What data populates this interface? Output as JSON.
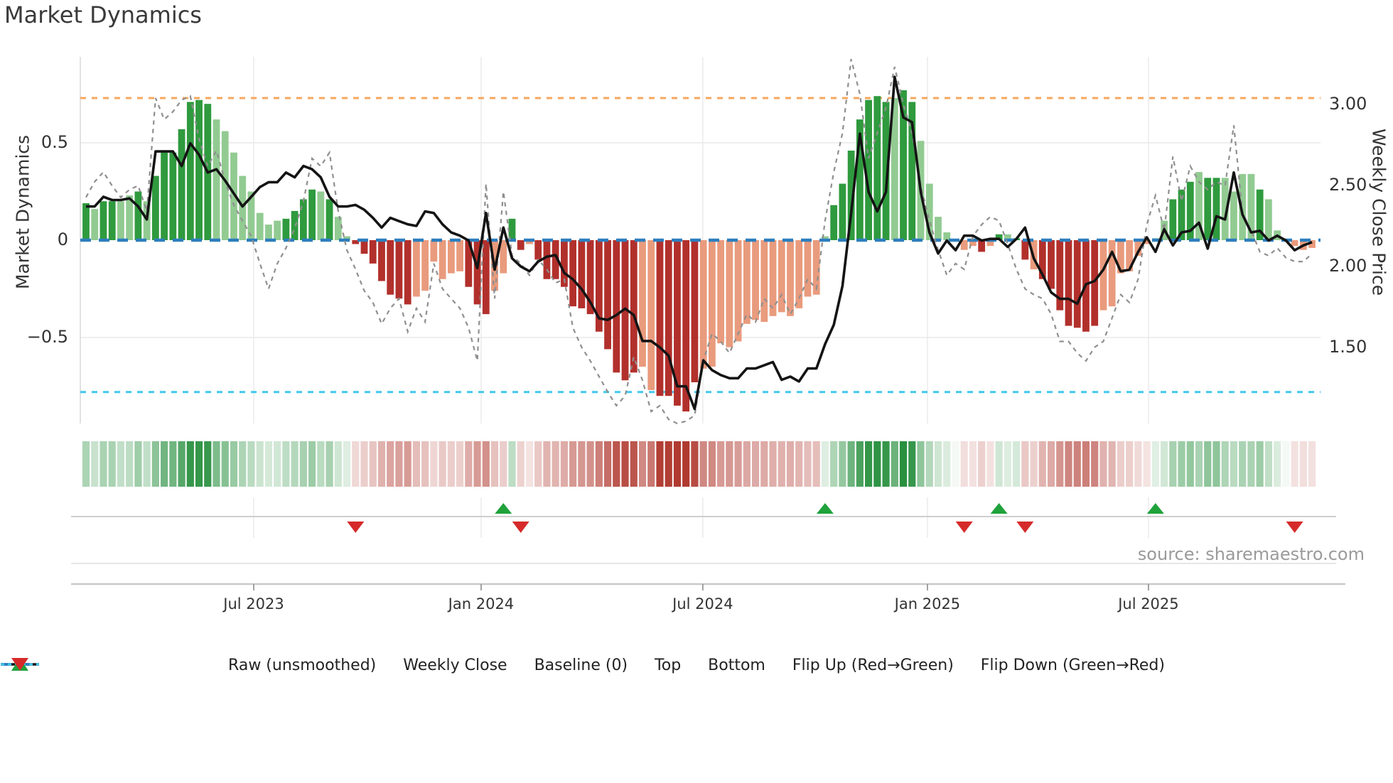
{
  "title": "Market Dynamics",
  "source": "source: sharemaestro.com",
  "legend": {
    "items": [
      {
        "label": "Raw (unsmoothed)",
        "swatch": "dash-gray"
      },
      {
        "label": "Weekly Close",
        "swatch": "solid-black"
      },
      {
        "label": "Baseline (0)",
        "swatch": "dash-blue"
      },
      {
        "label": "Top",
        "swatch": "dot-orange"
      },
      {
        "label": "Bottom",
        "swatch": "dot-cyan"
      },
      {
        "label": "Flip Up (Red→Green)",
        "swatch": "tri-up"
      },
      {
        "label": "Flip Down (Green→Red)",
        "swatch": "tri-down"
      }
    ]
  },
  "colors": {
    "bar_green_dark": "#2f9a3e",
    "bar_green_light": "#92cb92",
    "bar_red_dark": "#b2302c",
    "bar_red_light": "#e99b7d",
    "raw_line": "#8f8f8f",
    "close_line": "#141414",
    "baseline": "#2d7ebd",
    "top_line": "#f6a75f",
    "bottom_line": "#41c8ee",
    "flip_up": "#1fa23b",
    "flip_down": "#d62a2a",
    "grid": "#e9e9e9",
    "spine": "#cfcfcf",
    "text": "#333333"
  },
  "chart_data": {
    "type": "bar+line",
    "title": "Market Dynamics",
    "xlabel": "",
    "ylabel_left": "Market Dynamics",
    "ylabel_right": "Weekly Close Price",
    "x_freq": "weekly",
    "n_points": 142,
    "x_ticks": [
      {
        "pos": 19.29,
        "label": "Jul 2023"
      },
      {
        "pos": 45.44,
        "label": "Jan 2024"
      },
      {
        "pos": 70.94,
        "label": "Jul 2024"
      },
      {
        "pos": 96.77,
        "label": "Jan 2025"
      },
      {
        "pos": 122.19,
        "label": "Jul 2025"
      }
    ],
    "left_axis": {
      "ticks": [
        0.5,
        0,
        -0.5
      ],
      "tick_labels": [
        "0.5",
        "0",
        "−0.5"
      ],
      "ylim": [
        -0.94,
        0.94
      ]
    },
    "right_axis": {
      "ticks": [
        3.0,
        2.5,
        2.0,
        1.5
      ],
      "tick_labels": [
        "3.00",
        "2.50",
        "2.00",
        "1.50"
      ],
      "ylim": [
        1.03,
        3.29
      ]
    },
    "baseline": 0,
    "top_threshold": 0.73,
    "bottom_threshold": -0.78,
    "grid": "on",
    "legend_position": "bottom",
    "oscillator_smoothed": [
      0.19,
      0.16,
      0.2,
      0.2,
      0.2,
      0.23,
      0.25,
      0.2,
      0.33,
      0.45,
      0.45,
      0.57,
      0.71,
      0.72,
      0.7,
      0.62,
      0.56,
      0.45,
      0.33,
      0.25,
      0.14,
      0.08,
      0.1,
      0.11,
      0.15,
      0.21,
      0.26,
      0.25,
      0.21,
      0.12,
      0.02,
      -0.02,
      -0.07,
      -0.12,
      -0.21,
      -0.28,
      -0.3,
      -0.33,
      -0.29,
      -0.26,
      -0.11,
      -0.2,
      -0.17,
      -0.16,
      -0.24,
      -0.33,
      -0.38,
      -0.26,
      -0.17,
      0.11,
      -0.05,
      -0.02,
      -0.1,
      -0.2,
      -0.2,
      -0.24,
      -0.34,
      -0.35,
      -0.38,
      -0.47,
      -0.56,
      -0.68,
      -0.72,
      -0.68,
      -0.65,
      -0.77,
      -0.8,
      -0.8,
      -0.85,
      -0.88,
      -0.73,
      -0.66,
      -0.65,
      -0.53,
      -0.55,
      -0.52,
      -0.43,
      -0.41,
      -0.42,
      -0.39,
      -0.37,
      -0.39,
      -0.35,
      -0.29,
      -0.28,
      0.02,
      0.18,
      0.29,
      0.46,
      0.62,
      0.72,
      0.74,
      0.71,
      0.73,
      0.77,
      0.71,
      0.51,
      0.29,
      0.12,
      0.04,
      0.0,
      -0.05,
      -0.03,
      -0.06,
      -0.03,
      0.03,
      0.03,
      0.01,
      -0.1,
      -0.15,
      -0.2,
      -0.25,
      -0.36,
      -0.44,
      -0.45,
      -0.47,
      -0.44,
      -0.36,
      -0.34,
      -0.17,
      -0.16,
      -0.08,
      -0.02,
      0.01,
      0.1,
      0.21,
      0.26,
      0.3,
      0.35,
      0.32,
      0.32,
      0.32,
      0.25,
      0.34,
      0.34,
      0.26,
      0.21,
      0.05,
      0.0,
      -0.03,
      -0.05,
      -0.04
    ],
    "bar_shades": "dlddlldldddddddllllllllddddldlldddddddlllllldddllddlddddddddddddlldddddllllllllllllllldddddddlddllllllldldlddldddddddlllllllldddlddlllldllllllddl",
    "raw_unsmoothed": [
      0.22,
      0.3,
      0.35,
      0.28,
      0.22,
      0.26,
      0.28,
      0.15,
      0.73,
      0.62,
      0.66,
      0.72,
      0.74,
      0.52,
      0.38,
      0.46,
      0.3,
      0.18,
      0.1,
      0.02,
      -0.12,
      -0.25,
      -0.12,
      -0.04,
      0.06,
      0.2,
      0.42,
      0.38,
      0.45,
      0.15,
      -0.05,
      -0.15,
      -0.26,
      -0.32,
      -0.43,
      -0.35,
      -0.3,
      -0.47,
      -0.35,
      -0.42,
      -0.12,
      -0.25,
      -0.3,
      -0.35,
      -0.45,
      -0.62,
      0.29,
      -0.3,
      0.25,
      -0.08,
      -0.12,
      -0.18,
      -0.1,
      -0.15,
      -0.22,
      -0.2,
      -0.45,
      -0.55,
      -0.62,
      -0.7,
      -0.78,
      -0.85,
      -0.8,
      -0.6,
      -0.72,
      -0.88,
      -0.85,
      -0.92,
      -0.95,
      -0.93,
      -0.9,
      -0.62,
      -0.48,
      -0.52,
      -0.58,
      -0.48,
      -0.38,
      -0.42,
      -0.3,
      -0.35,
      -0.28,
      -0.38,
      -0.3,
      -0.2,
      -0.25,
      0.1,
      0.35,
      0.55,
      0.93,
      0.75,
      0.42,
      0.55,
      0.68,
      0.89,
      0.7,
      0.55,
      0.28,
      0.1,
      -0.05,
      -0.18,
      -0.12,
      -0.15,
      0.02,
      0.08,
      0.12,
      0.1,
      -0.02,
      -0.15,
      -0.25,
      -0.28,
      -0.3,
      -0.38,
      -0.52,
      -0.52,
      -0.58,
      -0.62,
      -0.55,
      -0.52,
      -0.4,
      -0.28,
      -0.32,
      -0.2,
      0.08,
      0.23,
      0.05,
      0.43,
      0.2,
      0.38,
      0.3,
      0.26,
      0.3,
      0.28,
      0.59,
      0.14,
      0.05,
      -0.06,
      -0.08,
      -0.04,
      -0.09,
      -0.11,
      -0.11,
      -0.07
    ],
    "weekly_close": [
      2.37,
      2.37,
      2.43,
      2.41,
      2.41,
      2.42,
      2.37,
      2.29,
      2.71,
      2.71,
      2.71,
      2.62,
      2.76,
      2.69,
      2.58,
      2.6,
      2.53,
      2.45,
      2.37,
      2.43,
      2.49,
      2.52,
      2.52,
      2.58,
      2.55,
      2.62,
      2.6,
      2.55,
      2.43,
      2.37,
      2.37,
      2.38,
      2.35,
      2.3,
      2.24,
      2.3,
      2.28,
      2.26,
      2.25,
      2.34,
      2.33,
      2.26,
      2.21,
      2.19,
      2.16,
      1.99,
      2.33,
      1.98,
      2.24,
      2.05,
      2.0,
      1.97,
      2.03,
      2.06,
      2.07,
      1.96,
      1.92,
      1.86,
      1.78,
      1.68,
      1.67,
      1.7,
      1.74,
      1.7,
      1.54,
      1.54,
      1.5,
      1.45,
      1.26,
      1.26,
      1.12,
      1.42,
      1.36,
      1.33,
      1.31,
      1.31,
      1.37,
      1.37,
      1.39,
      1.41,
      1.3,
      1.32,
      1.29,
      1.37,
      1.37,
      1.52,
      1.64,
      1.88,
      2.33,
      2.82,
      2.46,
      2.34,
      2.46,
      3.17,
      2.92,
      2.89,
      2.46,
      2.21,
      2.08,
      2.16,
      2.1,
      2.19,
      2.19,
      2.16,
      2.17,
      2.17,
      2.12,
      2.17,
      2.24,
      2.05,
      1.95,
      1.84,
      1.8,
      1.8,
      1.77,
      1.89,
      1.91,
      1.98,
      2.09,
      1.97,
      1.98,
      2.09,
      2.18,
      2.09,
      2.23,
      2.13,
      2.21,
      2.22,
      2.27,
      2.11,
      2.31,
      2.29,
      2.58,
      2.32,
      2.21,
      2.22,
      2.16,
      2.19,
      2.16,
      2.1,
      2.13,
      2.15
    ],
    "heatmap_source": "oscillator_smoothed",
    "flip_up_weeks": [
      48,
      85,
      105,
      123
    ],
    "flip_down_weeks": [
      31,
      50,
      101,
      108,
      139
    ]
  }
}
